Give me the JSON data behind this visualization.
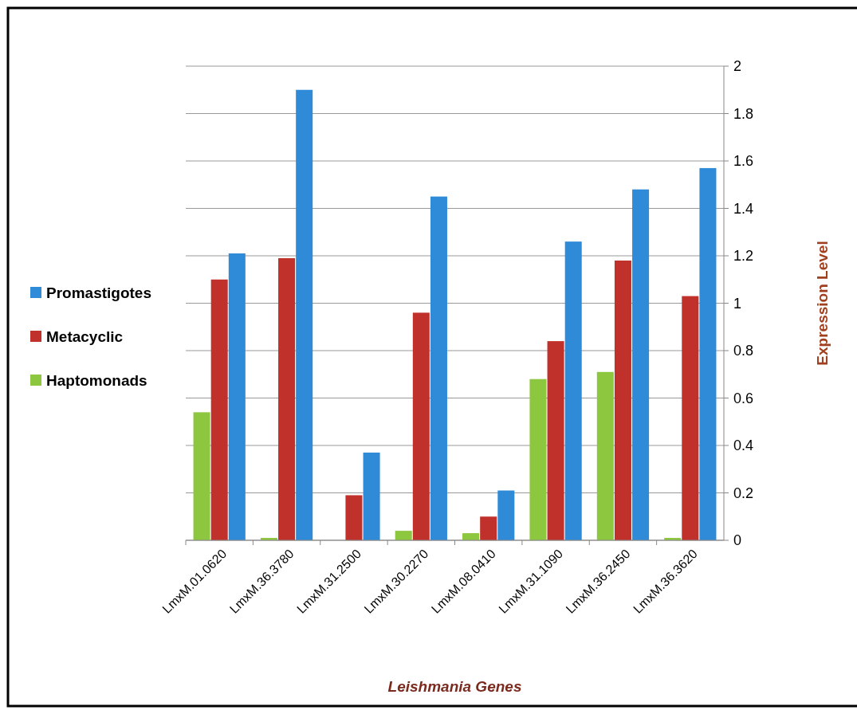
{
  "chart_data": {
    "type": "bar",
    "xlabel": "Leishmania Genes",
    "ylabel": "Expression Level",
    "categories": [
      "LmxM.01.0620",
      "LmxM.36.3780",
      "LmxM.31.2500",
      "LmxM.30.2270",
      "LmxM.08.0410",
      "LmxM.31.1090",
      "LmxM.36.2450",
      "LmxM.36.3620"
    ],
    "series": [
      {
        "name": "Haptomonads",
        "color": "#8dc63f",
        "values": [
          0.54,
          0.01,
          0.0,
          0.04,
          0.03,
          0.68,
          0.71,
          0.01
        ]
      },
      {
        "name": "Metacyclic",
        "color": "#c0312b",
        "values": [
          1.1,
          1.19,
          0.19,
          0.96,
          0.1,
          0.84,
          1.18,
          1.03
        ]
      },
      {
        "name": "Promastigotes",
        "color": "#2f8ad8",
        "values": [
          1.21,
          1.9,
          0.37,
          1.45,
          0.21,
          1.26,
          1.48,
          1.57
        ]
      }
    ],
    "ylim": [
      0,
      2
    ],
    "yticks": [
      0,
      0.2,
      0.4,
      0.6,
      0.8,
      1,
      1.2,
      1.4,
      1.6,
      1.8,
      2
    ],
    "grid": "y",
    "legend": "left"
  }
}
